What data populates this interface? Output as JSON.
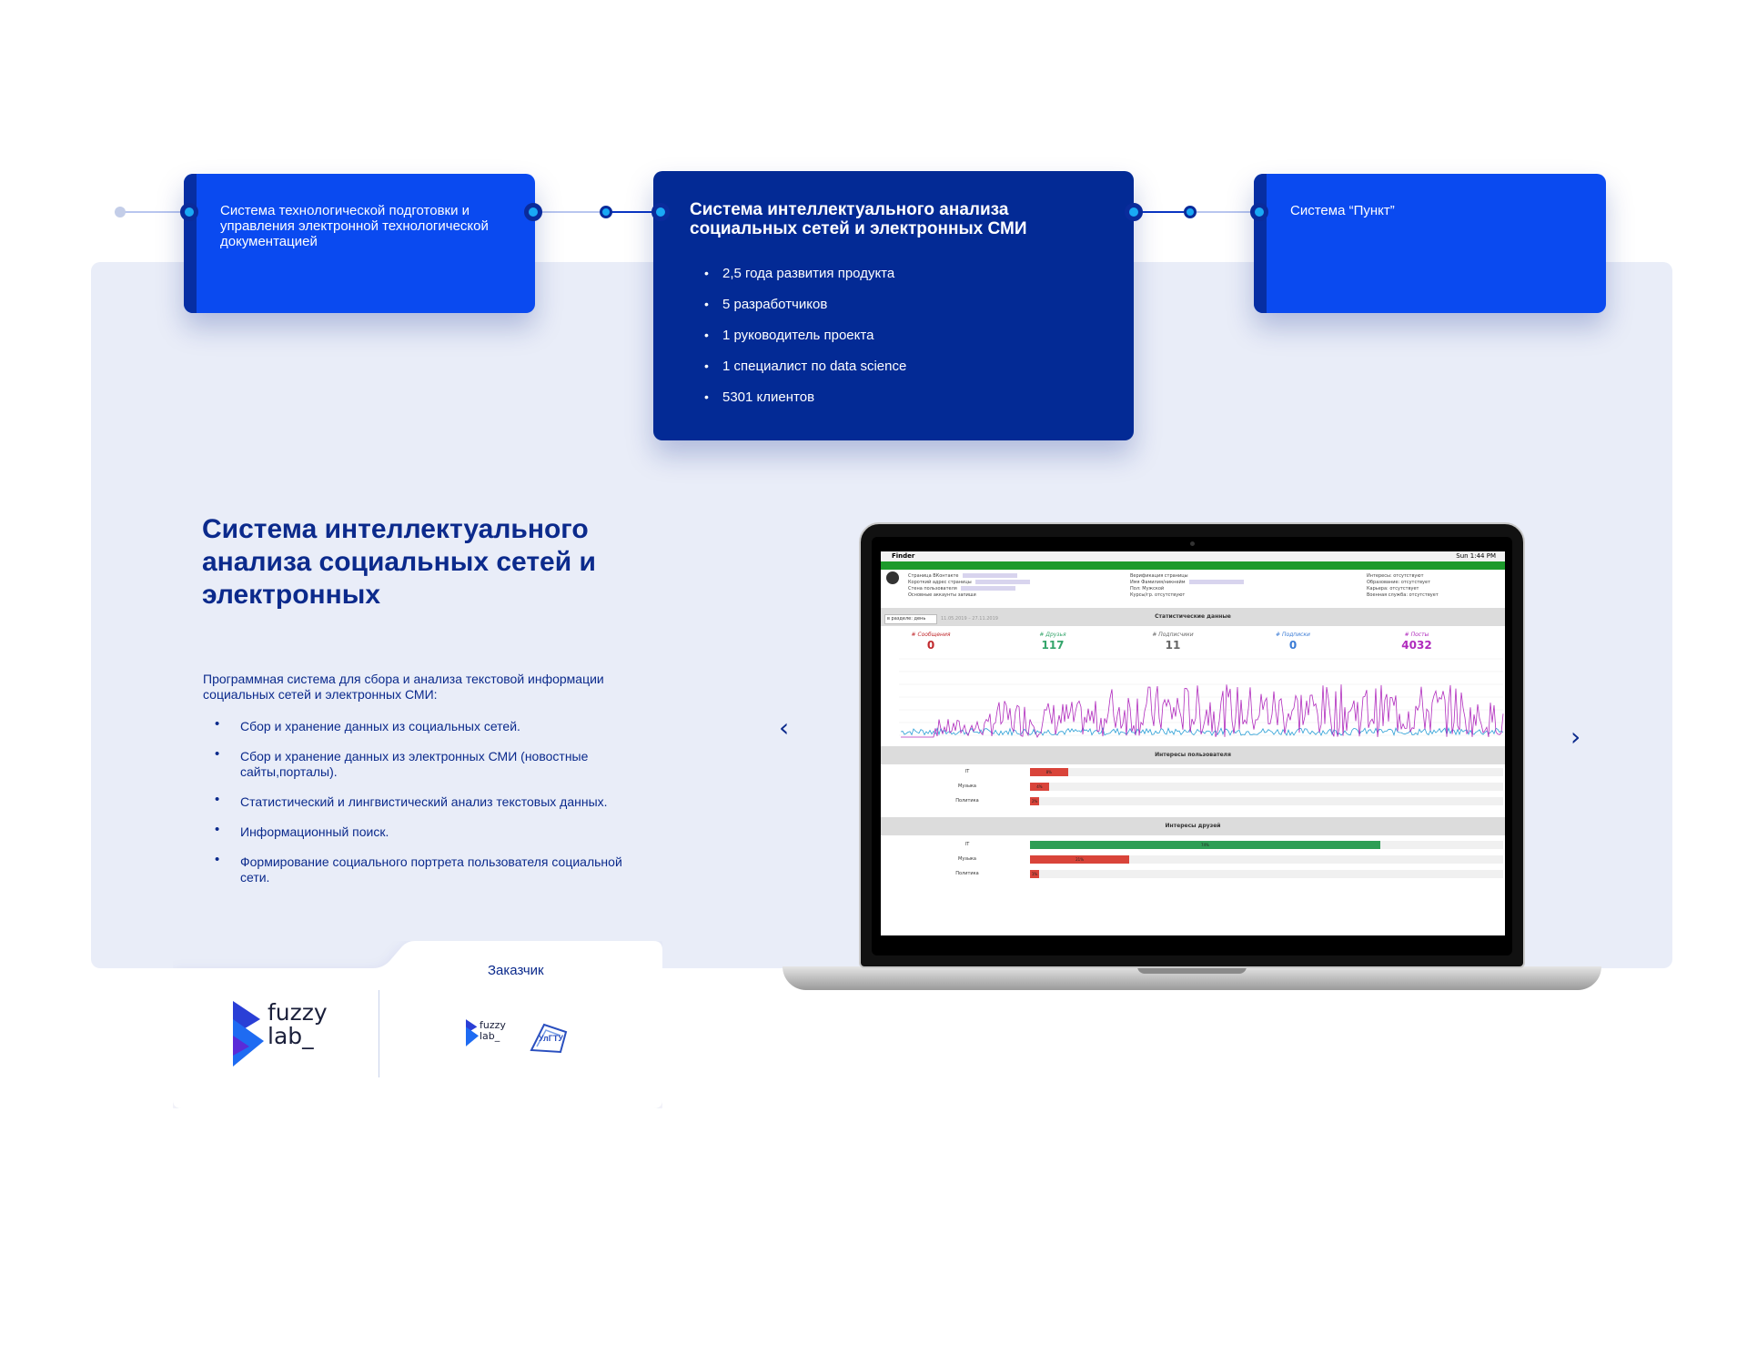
{
  "timeline": {
    "cards": [
      {
        "text": "Система технологической подготовки и управления электронной технологической документацией"
      },
      {
        "title": "Система интеллектуального анализа социальных сетей и электронных СМИ",
        "stats": [
          "2,5 года развития продукта",
          "5 разработчиков",
          "1 руководитель проекта",
          "1 специалист по data science",
          "5301 клиентов"
        ]
      },
      {
        "text": "Система “Пункт”"
      }
    ]
  },
  "project": {
    "title": "Система интеллектуального анализа социальных сетей и электронных",
    "intro": "Программная система для сбора и анализа текстовой информации социальных сетей и электронных СМИ:",
    "features": [
      "Сбор и хранение данных из социальных сетей.",
      "Сбор и хранение данных из электронных СМИ (новостные сайты,порталы).",
      "Статистический и лингвистический анализ текстовых данных.",
      "Информационный поиск.",
      "Формирование социального портрета пользователя социальной сети."
    ]
  },
  "customer": {
    "label": "Заказчик",
    "logo_main": {
      "line1": "fuzzy",
      "line2": "lab_"
    },
    "logo_partner": {
      "line1": "fuzzy",
      "line2": "lab_"
    },
    "logo_client": "УлГТУ"
  },
  "navigation": {
    "prev_icon": "chevron-left-icon",
    "next_icon": "chevron-right-icon"
  },
  "screen": {
    "menubar": {
      "app": "Finder",
      "clock": "Sun 1:44 PM"
    },
    "profile": {
      "col1": [
        "Страница ВКонтакте",
        "Короткий адрес страницы",
        "Стена пользователя",
        "Основные аккаунты запиши"
      ],
      "col2": [
        "Верификация страницы",
        "Имя Фамилия/никнейм",
        "Пол: Мужской",
        "Курсы/гр. отсутствуют"
      ],
      "col3": [
        "Интересы: отсутствуют",
        "Образование: отсутствует",
        "Карьера: отсутствует",
        "Военная служба: отсутствует"
      ]
    },
    "select_value": "в разделе: день",
    "date_range": "11.05.2019 – 27.11.2019",
    "stats_header": "Статистические данные",
    "stats": [
      {
        "label": "# Сообщения",
        "value": "0",
        "color": "#c0282c"
      },
      {
        "label": "# Друзья",
        "value": "117",
        "color": "#35a56b"
      },
      {
        "label": "# Подписчики",
        "value": "11",
        "color": "#666666"
      },
      {
        "label": "# Подписки",
        "value": "0",
        "color": "#3a7bd5"
      },
      {
        "label": "# Посты",
        "value": "4032",
        "color": "#b02bbd"
      }
    ],
    "user_interests_header": "Интересы пользователя",
    "user_interests": [
      {
        "label": "IT",
        "percent": 8,
        "text": "8%"
      },
      {
        "label": "Музыка",
        "percent": 4,
        "text": "4%"
      },
      {
        "label": "Политика",
        "percent": 2,
        "text": "2%"
      }
    ],
    "friend_interests_header": "Интересы друзей",
    "friend_interests": [
      {
        "label": "IT",
        "percent": 74,
        "text": "74%"
      },
      {
        "label": "Музыка",
        "percent": 21,
        "text": "21%"
      },
      {
        "label": "Политика",
        "percent": 1,
        "text": "1%"
      }
    ]
  },
  "colors": {
    "brand_blue": "#0a4af0",
    "brand_navy": "#032a95",
    "text_navy": "#0b2a8c",
    "panel_bg": "#e9edf8",
    "chart_purple": "#b02bbd",
    "chart_blue": "#2a9fd6",
    "bar_red": "#d9443a",
    "bar_green": "#2e9e55"
  }
}
